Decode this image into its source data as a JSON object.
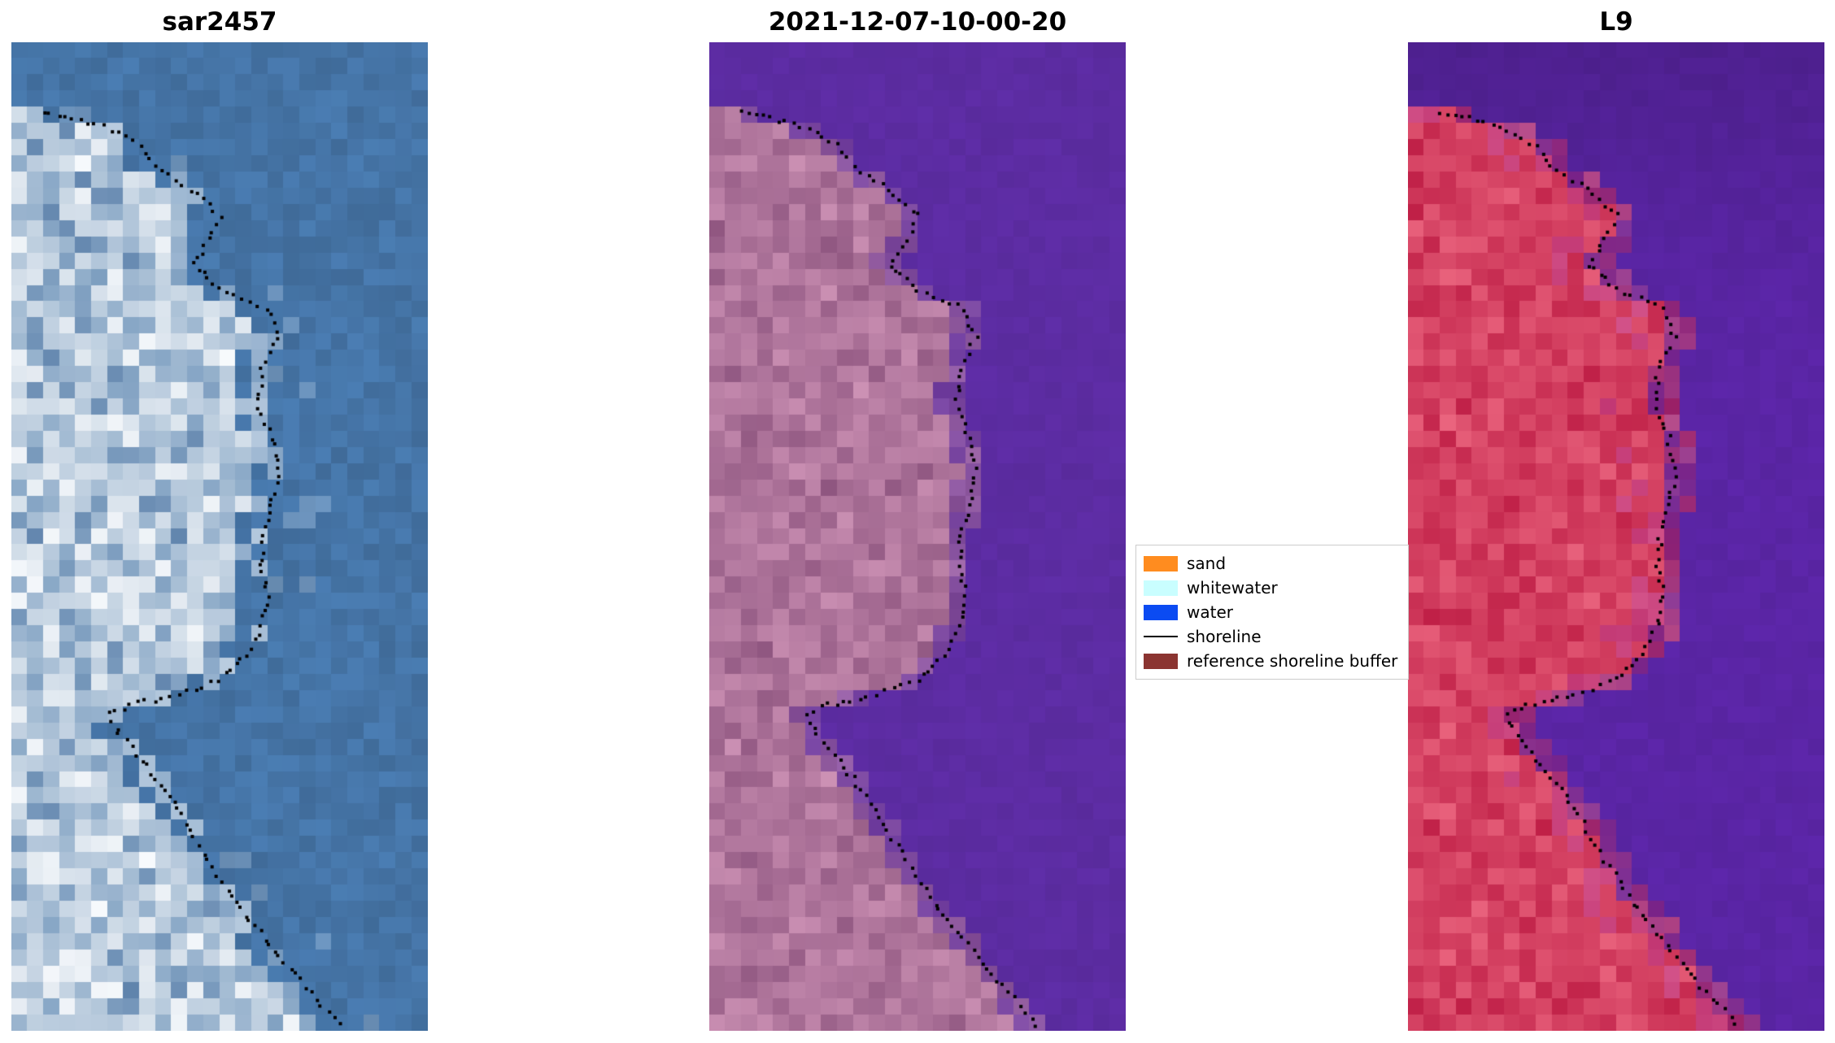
{
  "chart_data": {
    "type": "image",
    "description": "Three-panel satellite shoreline-detection figure: SAR backscatter image, classified optical image, and Landsat 9 image, each overlaid with the same dotted detected shoreline.",
    "panels": [
      {
        "id": "sar",
        "title": "sar2457",
        "kind": "sar",
        "seed": 11,
        "water_color": "#4574a6",
        "land_palette": [
          "#5b7fa9",
          "#88a7c6",
          "#b9cbdd",
          "#e3eaf1",
          "#fafcfe"
        ],
        "mask_offset": 0
      },
      {
        "id": "classified",
        "title": "2021-12-07-10-00-20",
        "kind": "landwater",
        "seed": 22,
        "water_color": "#5c2ca2",
        "land_dark": "#8f5680",
        "land_light": "#ce93b6",
        "shore_tint": "",
        "top_dark": false,
        "mask_offset": 0
      },
      {
        "id": "l9",
        "title": "L9",
        "kind": "landwater",
        "seed": 33,
        "water_color": "#5a25a5",
        "land_dark": "#bd1c44",
        "land_light": "#ea647e",
        "shore_tint": "#c0489a",
        "top_dark": true,
        "mask_offset": 0.035
      }
    ],
    "legend": {
      "entries": [
        {
          "label": "sand",
          "color": "#ff8c1f",
          "type": "patch"
        },
        {
          "label": "whitewater",
          "color": "#c9feff",
          "type": "patch"
        },
        {
          "label": "water",
          "color": "#0b4bf2",
          "type": "patch"
        },
        {
          "label": "shoreline",
          "color": "#000000",
          "type": "line"
        },
        {
          "label": "reference shoreline buffer",
          "color": "#8b3431",
          "type": "patch"
        }
      ]
    },
    "shoreline": {
      "color": "#000000",
      "style": "dotted",
      "points": [
        [
          0.07,
          0.075
        ],
        [
          0.085,
          0.22
        ],
        [
          0.105,
          0.31
        ],
        [
          0.125,
          0.345
        ],
        [
          0.15,
          0.43
        ],
        [
          0.175,
          0.5
        ],
        [
          0.2,
          0.475
        ],
        [
          0.225,
          0.435
        ],
        [
          0.25,
          0.5
        ],
        [
          0.27,
          0.615
        ],
        [
          0.3,
          0.64
        ],
        [
          0.33,
          0.6
        ],
        [
          0.37,
          0.595
        ],
        [
          0.4,
          0.625
        ],
        [
          0.44,
          0.64
        ],
        [
          0.47,
          0.625
        ],
        [
          0.5,
          0.605
        ],
        [
          0.53,
          0.6
        ],
        [
          0.56,
          0.615
        ],
        [
          0.59,
          0.6
        ],
        [
          0.62,
          0.565
        ],
        [
          0.645,
          0.5
        ],
        [
          0.66,
          0.4
        ],
        [
          0.67,
          0.285
        ],
        [
          0.68,
          0.235
        ],
        [
          0.7,
          0.26
        ],
        [
          0.72,
          0.3
        ],
        [
          0.745,
          0.345
        ],
        [
          0.775,
          0.4
        ],
        [
          0.805,
          0.44
        ],
        [
          0.835,
          0.485
        ],
        [
          0.865,
          0.53
        ],
        [
          0.895,
          0.585
        ],
        [
          0.925,
          0.645
        ],
        [
          0.955,
          0.705
        ],
        [
          0.98,
          0.76
        ],
        [
          1.0,
          0.8
        ]
      ]
    }
  }
}
